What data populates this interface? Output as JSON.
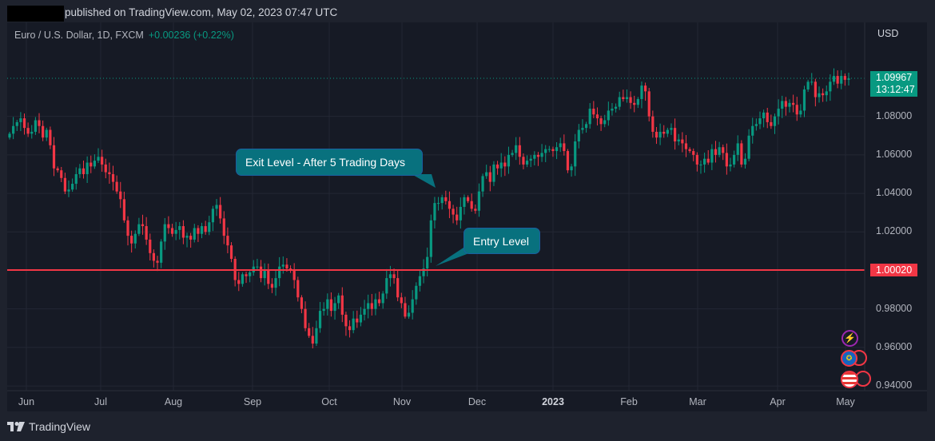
{
  "header": {
    "published": "published on TradingView.com, May 02, 2023 07:47 UTC"
  },
  "legend": {
    "symbol": "Euro / U.S. Dollar, 1D, FXCM",
    "change": "+0.00236 (+0.22%)"
  },
  "price_axis": {
    "currency": "USD",
    "ticks": [
      "1.08000",
      "1.06000",
      "1.04000",
      "1.02000",
      "0.98000",
      "0.96000",
      "0.94000"
    ],
    "current_price": "1.09967",
    "countdown": "13:12:47",
    "entry_price": "1.00020"
  },
  "time_axis": {
    "months": [
      "Jun",
      "Jul",
      "Aug",
      "Sep",
      "Oct",
      "Nov",
      "Dec",
      "2023",
      "Feb",
      "Mar",
      "Apr",
      "May"
    ]
  },
  "annotations": {
    "exit_label": "Exit Level - After 5 Trading Days",
    "entry_label": "Entry Level"
  },
  "footer": {
    "brand": "TradingView"
  },
  "colors": {
    "up": "#089981",
    "down": "#f23645",
    "entry_line": "#f23645",
    "callout_bg": "#08717e",
    "background": "#161a25"
  },
  "chart_data": {
    "type": "candlestick",
    "title": "Euro / U.S. Dollar, 1D, FXCM",
    "xlabel": "",
    "ylabel": "USD",
    "ylim": [
      0.935,
      1.115
    ],
    "grid": true,
    "x_ticks": [
      "Jun",
      "Jul",
      "Aug",
      "Sep",
      "Oct",
      "Nov",
      "Dec",
      "2023",
      "Feb",
      "Mar",
      "Apr",
      "May"
    ],
    "y_ticks": [
      0.94,
      0.96,
      0.98,
      1.0,
      1.02,
      1.04,
      1.06,
      1.08
    ],
    "horizontal_lines": [
      {
        "label": "Entry Level",
        "value": 1.0002,
        "color": "#f23645"
      }
    ],
    "last_price": 1.09967,
    "last_change": "+0.00236 (+0.22%)",
    "closes": [
      1.071,
      1.075,
      1.077,
      1.079,
      1.074,
      1.071,
      1.072,
      1.078,
      1.075,
      1.069,
      1.073,
      1.065,
      1.053,
      1.052,
      1.048,
      1.041,
      1.042,
      1.045,
      1.05,
      1.053,
      1.05,
      1.056,
      1.054,
      1.057,
      1.059,
      1.055,
      1.051,
      1.05,
      1.046,
      1.041,
      1.037,
      1.026,
      1.018,
      1.014,
      1.019,
      1.024,
      1.023,
      1.016,
      1.009,
      1.005,
      1.004,
      1.015,
      1.024,
      1.022,
      1.019,
      1.021,
      1.023,
      1.017,
      1.018,
      1.016,
      1.022,
      1.019,
      1.023,
      1.02,
      1.025,
      1.032,
      1.034,
      1.027,
      1.018,
      1.013,
      1.006,
      0.995,
      0.993,
      0.998,
      0.997,
      0.999,
      1.002,
      1.002,
      0.996,
      1.0,
      0.993,
      0.991,
      0.996,
      1.002,
      1.003,
      1.001,
      1.0,
      0.995,
      0.986,
      0.98,
      0.97,
      0.966,
      0.962,
      0.97,
      0.979,
      0.98,
      0.985,
      0.979,
      0.983,
      0.987,
      0.977,
      0.971,
      0.969,
      0.975,
      0.973,
      0.977,
      0.98,
      0.983,
      0.98,
      0.985,
      0.983,
      0.988,
      0.996,
      0.998,
      0.996,
      0.986,
      0.983,
      0.976,
      0.978,
      0.985,
      0.992,
      0.997,
      1.001,
      1.007,
      1.026,
      1.035,
      1.035,
      1.038,
      1.036,
      1.032,
      1.029,
      1.026,
      1.033,
      1.038,
      1.036,
      1.032,
      1.031,
      1.041,
      1.049,
      1.051,
      1.046,
      1.055,
      1.053,
      1.056,
      1.054,
      1.06,
      1.061,
      1.065,
      1.059,
      1.055,
      1.057,
      1.058,
      1.06,
      1.059,
      1.061,
      1.063,
      1.063,
      1.062,
      1.064,
      1.066,
      1.062,
      1.052,
      1.054,
      1.067,
      1.073,
      1.074,
      1.076,
      1.084,
      1.081,
      1.079,
      1.076,
      1.078,
      1.083,
      1.084,
      1.085,
      1.09,
      1.089,
      1.09,
      1.087,
      1.086,
      1.089,
      1.096,
      1.093,
      1.08,
      1.072,
      1.069,
      1.072,
      1.071,
      1.073,
      1.074,
      1.067,
      1.068,
      1.066,
      1.063,
      1.062,
      1.06,
      1.055,
      1.055,
      1.058,
      1.056,
      1.063,
      1.06,
      1.064,
      1.061,
      1.054,
      1.055,
      1.06,
      1.066,
      1.055,
      1.058,
      1.07,
      1.075,
      1.076,
      1.079,
      1.082,
      1.077,
      1.075,
      1.08,
      1.084,
      1.088,
      1.085,
      1.087,
      1.086,
      1.081,
      1.083,
      1.094,
      1.098,
      1.098,
      1.09,
      1.092,
      1.091,
      1.093,
      1.098,
      1.101,
      1.097,
      1.101,
      1.099,
      1.0997
    ]
  }
}
